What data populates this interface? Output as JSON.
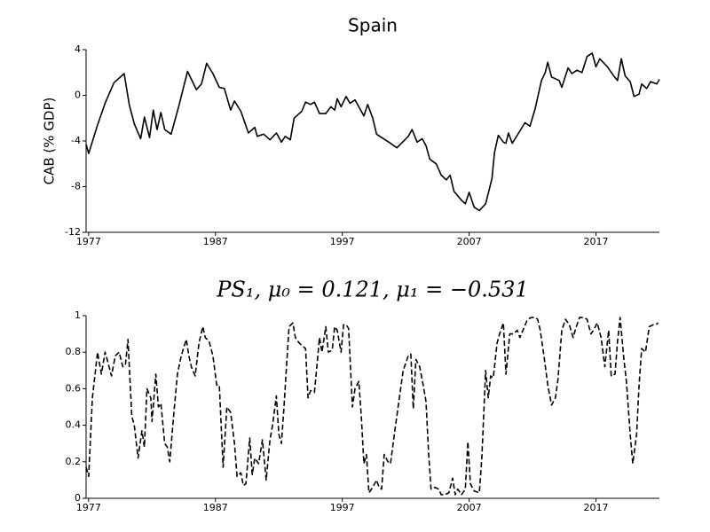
{
  "chart_data": [
    {
      "type": "line",
      "title": "Spain",
      "y_label": "CAB (% GDP)",
      "x": [
        1976.8,
        1977.0,
        1977.7,
        1978.3,
        1979.0,
        1979.8,
        1980.2,
        1980.6,
        1981.1,
        1981.4,
        1981.8,
        1982.1,
        1982.4,
        1982.7,
        1983.0,
        1983.5,
        1984.1,
        1984.8,
        1985.5,
        1985.9,
        1986.3,
        1986.8,
        1987.3,
        1987.7,
        1988.2,
        1988.5,
        1989.0,
        1989.6,
        1990.1,
        1990.3,
        1990.8,
        1991.3,
        1991.8,
        1992.2,
        1992.5,
        1992.9,
        1993.2,
        1993.8,
        1994.1,
        1994.5,
        1994.8,
        1995.2,
        1995.7,
        1996.1,
        1996.4,
        1996.6,
        1996.9,
        1997.3,
        1997.6,
        1998.0,
        1998.7,
        1999.0,
        1999.4,
        1999.7,
        2000.1,
        2000.8,
        2001.3,
        2002.2,
        2002.5,
        2002.9,
        2003.3,
        2003.6,
        2003.9,
        2004.4,
        2004.8,
        2005.2,
        2005.5,
        2005.8,
        2006.4,
        2006.7,
        2007.0,
        2007.4,
        2007.8,
        2008.3,
        2008.8,
        2009.0,
        2009.3,
        2009.7,
        2009.9,
        2010.1,
        2010.4,
        2010.9,
        2011.4,
        2011.8,
        2012.2,
        2012.7,
        2013.0,
        2013.2,
        2013.5,
        2014.1,
        2014.3,
        2014.8,
        2015.1,
        2015.5,
        2015.9,
        2016.3,
        2016.7,
        2017.0,
        2017.3,
        2017.9,
        2018.4,
        2018.7,
        2019.0,
        2019.3,
        2019.7,
        2020.0,
        2020.4,
        2020.6,
        2021.0,
        2021.3,
        2021.8,
        2022.0
      ],
      "series": [
        {
          "color": "#000000",
          "dash": false,
          "values": [
            -4.3,
            -5.1,
            -2.6,
            -0.7,
            1.1,
            1.9,
            -0.8,
            -2.5,
            -3.8,
            -1.9,
            -3.7,
            -1.3,
            -3.0,
            -1.5,
            -3.0,
            -3.4,
            -1.0,
            2.1,
            0.5,
            1.0,
            2.8,
            1.9,
            0.7,
            0.6,
            -1.3,
            -0.5,
            -1.4,
            -3.3,
            -2.8,
            -3.6,
            -3.4,
            -3.9,
            -3.3,
            -4.1,
            -3.6,
            -3.9,
            -2.0,
            -1.4,
            -0.6,
            -0.8,
            -0.6,
            -1.6,
            -1.6,
            -1.0,
            -1.3,
            -0.3,
            -1.0,
            -0.1,
            -0.7,
            -0.4,
            -1.8,
            -0.8,
            -2.0,
            -3.4,
            -3.7,
            -4.2,
            -4.6,
            -3.6,
            -3.0,
            -4.1,
            -3.8,
            -4.4,
            -5.6,
            -6.0,
            -7.0,
            -7.4,
            -7.0,
            -8.4,
            -9.2,
            -9.5,
            -8.5,
            -9.8,
            -10.1,
            -9.5,
            -7.3,
            -5.0,
            -3.5,
            -4.1,
            -4.2,
            -3.3,
            -4.2,
            -3.3,
            -2.4,
            -2.7,
            -1.2,
            1.3,
            2.0,
            2.9,
            1.6,
            1.3,
            0.7,
            2.4,
            1.9,
            2.2,
            2.0,
            3.4,
            3.7,
            2.5,
            3.2,
            2.5,
            1.7,
            1.3,
            3.2,
            1.7,
            1.2,
            -0.1,
            0.1,
            1.0,
            0.6,
            1.2,
            1.0,
            1.4
          ]
        }
      ],
      "xlim": [
        1976.8,
        2022
      ],
      "xticks": [
        1977,
        1987,
        1997,
        2007,
        2017
      ],
      "ylim": [
        -12,
        4
      ],
      "yticks": [
        -12,
        -8,
        -4,
        0,
        4
      ]
    },
    {
      "type": "line",
      "title": "PS₁, μ₀ = 0.121, μ₁ = −0.531",
      "x": [
        1976.8,
        1977.0,
        1977.3,
        1977.7,
        1978.0,
        1978.3,
        1978.5,
        1978.8,
        1979.1,
        1979.4,
        1979.7,
        1979.9,
        1980.1,
        1980.4,
        1980.6,
        1980.9,
        1981.2,
        1981.4,
        1981.6,
        1981.9,
        1982.0,
        1982.3,
        1982.5,
        1982.7,
        1983.0,
        1983.2,
        1983.4,
        1983.7,
        1984.0,
        1984.3,
        1984.7,
        1984.9,
        1985.1,
        1985.4,
        1985.7,
        1986.0,
        1986.2,
        1986.5,
        1986.8,
        1987.1,
        1987.3,
        1987.6,
        1987.9,
        1988.2,
        1988.5,
        1988.7,
        1989.0,
        1989.2,
        1989.4,
        1989.7,
        1989.9,
        1990.1,
        1990.4,
        1990.7,
        1991.0,
        1991.3,
        1991.5,
        1991.8,
        1992.0,
        1992.2,
        1992.4,
        1992.6,
        1992.8,
        1993.1,
        1993.3,
        1993.6,
        1994.1,
        1994.3,
        1994.5,
        1994.8,
        1995.2,
        1995.4,
        1995.7,
        1995.9,
        1996.2,
        1996.4,
        1996.6,
        1996.9,
        1997.1,
        1997.3,
        1997.5,
        1997.8,
        1998.0,
        1998.3,
        1998.5,
        1998.7,
        1998.9,
        1999.1,
        1999.4,
        1999.7,
        1999.9,
        2000.1,
        2000.3,
        2000.6,
        2000.8,
        2001.2,
        2001.5,
        2001.8,
        2002.2,
        2002.4,
        2002.6,
        2002.8,
        2003.1,
        2003.4,
        2003.6,
        2003.8,
        2004.0,
        2004.3,
        2004.6,
        2004.8,
        2005.1,
        2005.4,
        2005.7,
        2005.9,
        2006.1,
        2006.4,
        2006.7,
        2006.9,
        2007.1,
        2007.4,
        2007.8,
        2008.0,
        2008.3,
        2008.5,
        2008.7,
        2008.9,
        2009.2,
        2009.4,
        2009.7,
        2009.9,
        2010.2,
        2010.5,
        2010.8,
        2011.0,
        2011.3,
        2011.6,
        2011.9,
        2012.2,
        2012.4,
        2012.6,
        2012.9,
        2013.2,
        2013.5,
        2013.8,
        2014.0,
        2014.3,
        2014.6,
        2014.9,
        2015.2,
        2015.4,
        2015.7,
        2016.0,
        2016.3,
        2016.6,
        2016.8,
        2017.1,
        2017.4,
        2017.7,
        2018.0,
        2018.2,
        2018.5,
        2018.7,
        2018.9,
        2019.2,
        2019.4,
        2019.7,
        2019.9,
        2020.2,
        2020.4,
        2020.6,
        2020.9,
        2021.2,
        2021.5,
        2021.7,
        2021.9
      ],
      "series": [
        {
          "color": "#000000",
          "dash": true,
          "values": [
            0.17,
            0.12,
            0.55,
            0.8,
            0.68,
            0.8,
            0.75,
            0.67,
            0.78,
            0.8,
            0.72,
            0.73,
            0.87,
            0.45,
            0.4,
            0.22,
            0.37,
            0.28,
            0.6,
            0.55,
            0.42,
            0.68,
            0.5,
            0.52,
            0.3,
            0.28,
            0.2,
            0.45,
            0.68,
            0.78,
            0.87,
            0.78,
            0.72,
            0.67,
            0.85,
            0.94,
            0.88,
            0.86,
            0.78,
            0.62,
            0.62,
            0.17,
            0.5,
            0.47,
            0.3,
            0.12,
            0.14,
            0.07,
            0.08,
            0.33,
            0.13,
            0.22,
            0.19,
            0.32,
            0.1,
            0.32,
            0.4,
            0.56,
            0.35,
            0.3,
            0.5,
            0.72,
            0.94,
            0.96,
            0.88,
            0.85,
            0.82,
            0.55,
            0.59,
            0.58,
            0.88,
            0.8,
            0.94,
            0.8,
            0.81,
            0.94,
            0.92,
            0.8,
            0.95,
            0.95,
            0.93,
            0.5,
            0.6,
            0.64,
            0.45,
            0.19,
            0.24,
            0.03,
            0.06,
            0.1,
            0.06,
            0.05,
            0.24,
            0.2,
            0.19,
            0.4,
            0.55,
            0.7,
            0.78,
            0.79,
            0.49,
            0.76,
            0.72,
            0.61,
            0.53,
            0.25,
            0.05,
            0.06,
            0.05,
            0.02,
            0.02,
            0.03,
            0.11,
            0.02,
            0.05,
            0.02,
            0.05,
            0.31,
            0.08,
            0.04,
            0.03,
            0.22,
            0.7,
            0.55,
            0.67,
            0.66,
            0.85,
            0.9,
            0.96,
            0.68,
            0.9,
            0.9,
            0.92,
            0.88,
            0.93,
            0.98,
            0.99,
            0.99,
            0.98,
            0.92,
            0.78,
            0.62,
            0.51,
            0.55,
            0.65,
            0.92,
            0.98,
            0.95,
            0.88,
            0.93,
            0.99,
            0.99,
            0.98,
            0.9,
            0.92,
            0.96,
            0.88,
            0.72,
            0.92,
            0.67,
            0.68,
            0.86,
            0.99,
            0.76,
            0.64,
            0.35,
            0.19,
            0.35,
            0.62,
            0.82,
            0.8,
            0.94,
            0.95,
            0.95,
            0.96
          ]
        }
      ],
      "xlim": [
        1976.8,
        2022
      ],
      "xticks": [
        1977,
        1987,
        1997,
        2007,
        2017
      ],
      "ylim": [
        0,
        1
      ],
      "yticks": [
        0,
        0.2,
        0.4,
        0.6,
        0.8,
        1
      ]
    }
  ]
}
